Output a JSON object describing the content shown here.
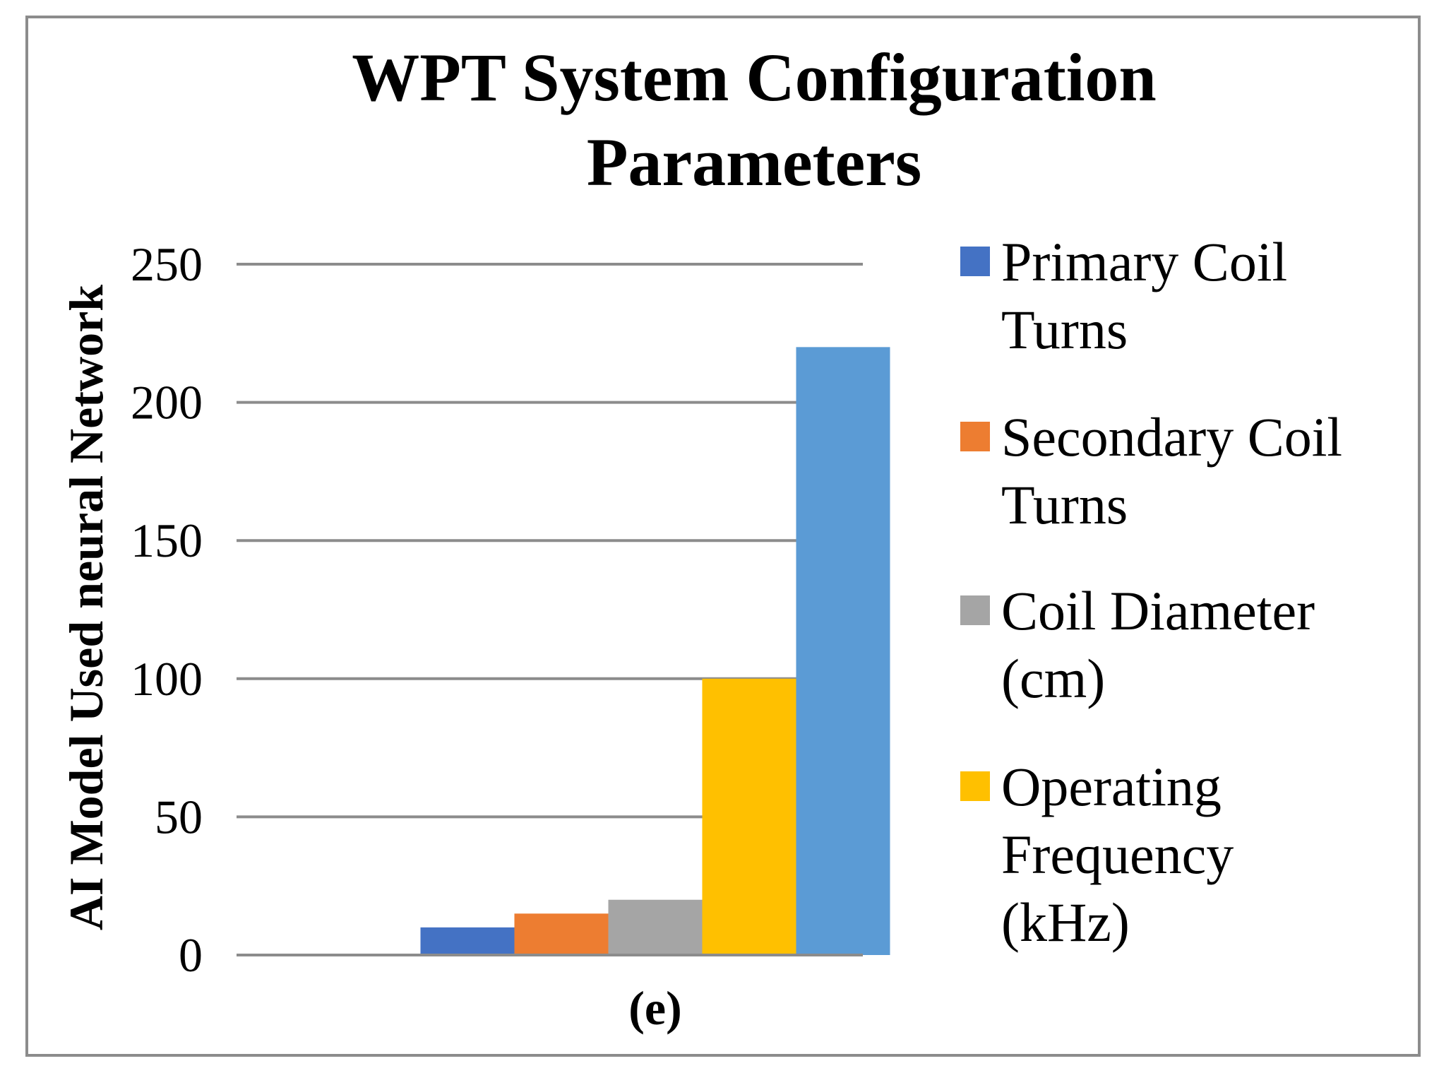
{
  "chart_data": {
    "type": "bar",
    "title_lines": [
      "WPT System Configuration",
      "Parameters"
    ],
    "ylabel": "AI Model  Used neural Network",
    "xlabel": "",
    "categories": [
      "(e)"
    ],
    "yticks": [
      "0",
      "50",
      "100",
      "150",
      "200",
      "250"
    ],
    "ylim": [
      0,
      250
    ],
    "grid": true,
    "legend_position": "right",
    "series": [
      {
        "name": "Primary Coil Turns",
        "legend_lines": [
          "Primary Coil",
          "Turns"
        ],
        "values": [
          10
        ],
        "color": "#4472c4"
      },
      {
        "name": "Secondary Coil Turns",
        "legend_lines": [
          "Secondary Coil",
          "Turns"
        ],
        "values": [
          15
        ],
        "color": "#ed7d31"
      },
      {
        "name": "Coil Diameter (cm)",
        "legend_lines": [
          "Coil Diameter",
          "(cm)"
        ],
        "values": [
          20
        ],
        "color": "#a5a5a5"
      },
      {
        "name": "Operating Frequency (kHz)",
        "legend_lines": [
          "Operating",
          "Frequency",
          "(kHz)"
        ],
        "values": [
          100
        ],
        "color": "#ffc000"
      },
      {
        "name": "",
        "legend_lines": [],
        "values": [
          220
        ],
        "color": "#5b9bd5"
      }
    ]
  }
}
